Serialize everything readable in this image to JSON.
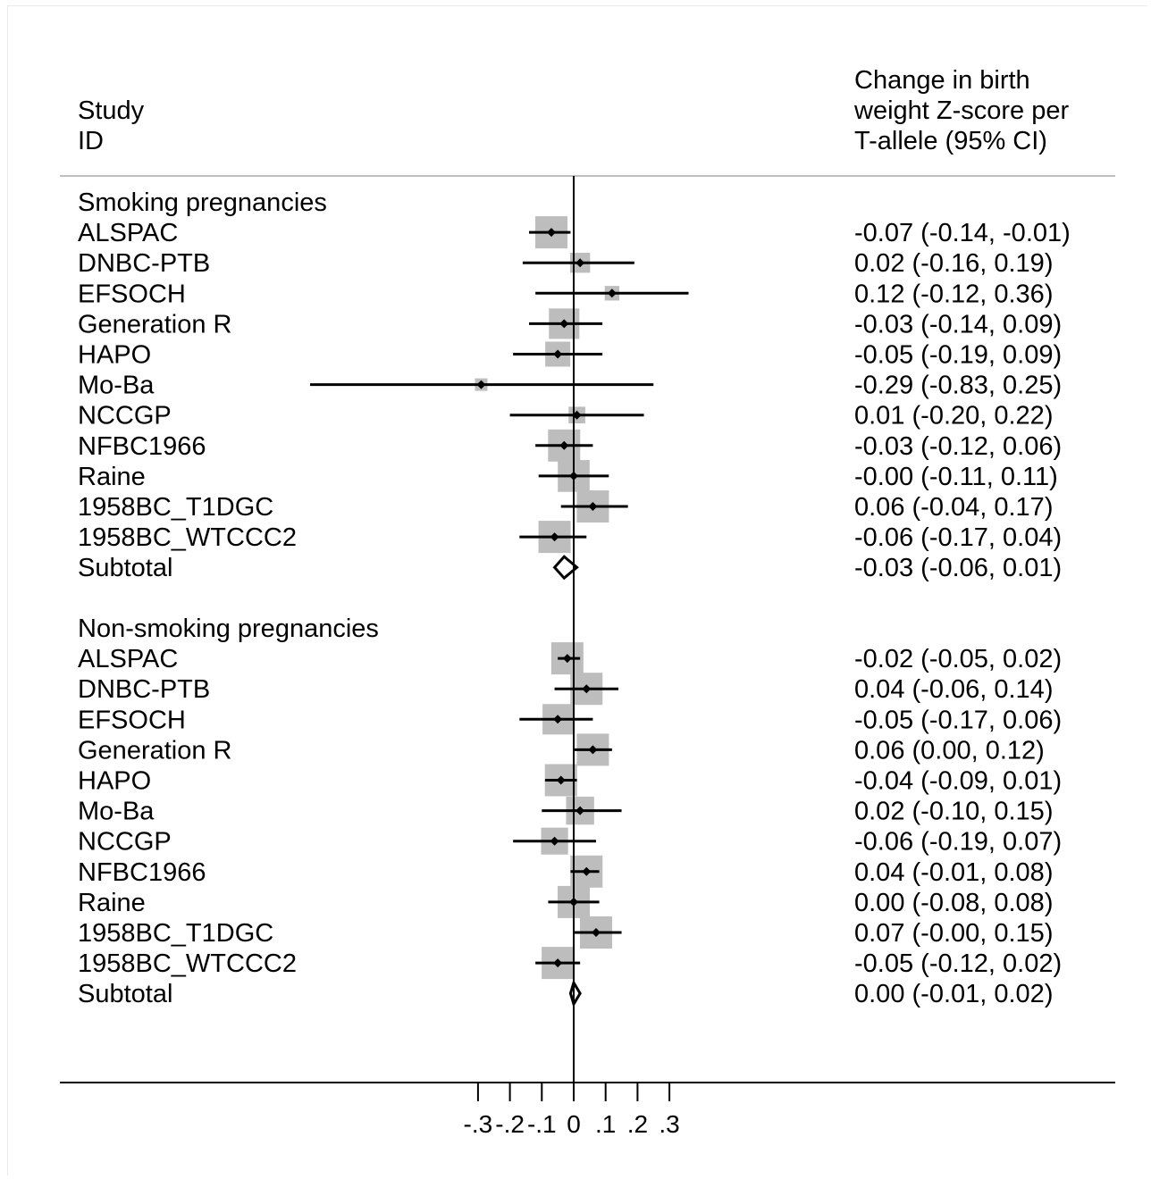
{
  "chart_data": {
    "type": "forest",
    "header": {
      "study_col": [
        "Study",
        "ID"
      ],
      "effect_col": [
        "Change in birth",
        "weight Z-score per",
        "T-allele (95% CI)"
      ]
    },
    "groups": [
      {
        "label": "Smoking pregnancies",
        "studies": [
          {
            "name": "ALSPAC",
            "est": -0.07,
            "lo": -0.14,
            "hi": -0.01,
            "ci_text": "-0.07 (-0.14, -0.01)"
          },
          {
            "name": "DNBC-PTB",
            "est": 0.02,
            "lo": -0.16,
            "hi": 0.19,
            "ci_text": "0.02 (-0.16, 0.19)"
          },
          {
            "name": "EFSOCH",
            "est": 0.12,
            "lo": -0.12,
            "hi": 0.36,
            "ci_text": "0.12 (-0.12, 0.36)"
          },
          {
            "name": "Generation R",
            "est": -0.03,
            "lo": -0.14,
            "hi": 0.09,
            "ci_text": "-0.03 (-0.14, 0.09)"
          },
          {
            "name": "HAPO",
            "est": -0.05,
            "lo": -0.19,
            "hi": 0.09,
            "ci_text": "-0.05 (-0.19, 0.09)"
          },
          {
            "name": "Mo-Ba",
            "est": -0.29,
            "lo": -0.83,
            "hi": 0.25,
            "ci_text": "-0.29 (-0.83, 0.25)"
          },
          {
            "name": "NCCGP",
            "est": 0.01,
            "lo": -0.2,
            "hi": 0.22,
            "ci_text": "0.01 (-0.20, 0.22)"
          },
          {
            "name": "NFBC1966",
            "est": -0.03,
            "lo": -0.12,
            "hi": 0.06,
            "ci_text": "-0.03 (-0.12, 0.06)"
          },
          {
            "name": "Raine",
            "est": 0.0,
            "lo": -0.11,
            "hi": 0.11,
            "ci_text": "-0.00 (-0.11, 0.11)"
          },
          {
            "name": "1958BC_T1DGC",
            "est": 0.06,
            "lo": -0.04,
            "hi": 0.17,
            "ci_text": "0.06 (-0.04, 0.17)"
          },
          {
            "name": "1958BC_WTCCC2",
            "est": -0.06,
            "lo": -0.17,
            "hi": 0.04,
            "ci_text": "-0.06 (-0.17, 0.04)"
          }
        ],
        "subtotal": {
          "name": "Subtotal",
          "est": -0.03,
          "lo": -0.06,
          "hi": 0.01,
          "ci_text": "-0.03 (-0.06, 0.01)"
        }
      },
      {
        "label": "Non-smoking pregnancies",
        "studies": [
          {
            "name": "ALSPAC",
            "est": -0.02,
            "lo": -0.05,
            "hi": 0.02,
            "ci_text": "-0.02 (-0.05, 0.02)"
          },
          {
            "name": "DNBC-PTB",
            "est": 0.04,
            "lo": -0.06,
            "hi": 0.14,
            "ci_text": "0.04 (-0.06, 0.14)"
          },
          {
            "name": "EFSOCH",
            "est": -0.05,
            "lo": -0.17,
            "hi": 0.06,
            "ci_text": "-0.05 (-0.17, 0.06)"
          },
          {
            "name": "Generation R",
            "est": 0.06,
            "lo": 0.0,
            "hi": 0.12,
            "ci_text": "0.06 (0.00, 0.12)"
          },
          {
            "name": "HAPO",
            "est": -0.04,
            "lo": -0.09,
            "hi": 0.01,
            "ci_text": "-0.04 (-0.09, 0.01)"
          },
          {
            "name": "Mo-Ba",
            "est": 0.02,
            "lo": -0.1,
            "hi": 0.15,
            "ci_text": "0.02 (-0.10, 0.15)"
          },
          {
            "name": "NCCGP",
            "est": -0.06,
            "lo": -0.19,
            "hi": 0.07,
            "ci_text": "-0.06 (-0.19, 0.07)"
          },
          {
            "name": "NFBC1966",
            "est": 0.04,
            "lo": -0.01,
            "hi": 0.08,
            "ci_text": "0.04 (-0.01, 0.08)"
          },
          {
            "name": "Raine",
            "est": 0.0,
            "lo": -0.08,
            "hi": 0.08,
            "ci_text": "0.00 (-0.08, 0.08)"
          },
          {
            "name": "1958BC_T1DGC",
            "est": 0.07,
            "lo": -0.0,
            "hi": 0.15,
            "ci_text": "0.07 (-0.00, 0.15)"
          },
          {
            "name": "1958BC_WTCCC2",
            "est": -0.05,
            "lo": -0.12,
            "hi": 0.02,
            "ci_text": "-0.05 (-0.12, 0.02)"
          }
        ],
        "subtotal": {
          "name": "Subtotal",
          "est": 0.0,
          "lo": -0.01,
          "hi": 0.02,
          "ci_text": "0.00 (-0.01, 0.02)"
        }
      }
    ],
    "x_axis": {
      "ticks": [
        -0.3,
        -0.2,
        -0.1,
        0,
        0.1,
        0.2,
        0.3
      ],
      "tick_labels": [
        "-.3",
        "-.2",
        "-.1",
        "0",
        ".1",
        ".2",
        ".3"
      ],
      "reference_line": 0
    },
    "colors": {
      "weight_box": "#bdbdbd",
      "point": "#000000",
      "line": "#000000"
    }
  }
}
